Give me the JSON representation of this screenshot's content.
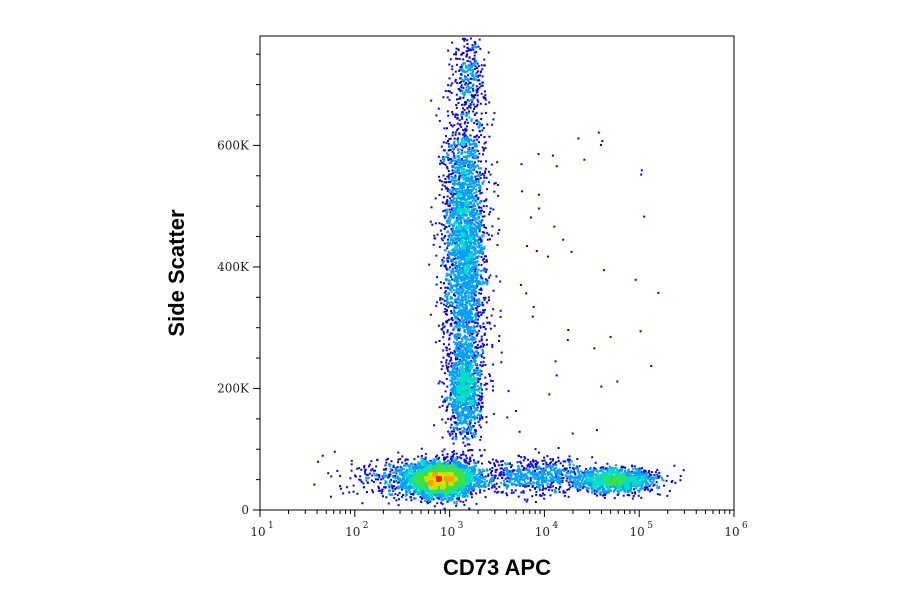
{
  "chart_data": {
    "type": "scatter",
    "subtype": "flow-cytometry-density-dot-plot",
    "xlabel": "CD73 APC",
    "ylabel": "Side Scatter",
    "x_scale": "log",
    "xlim": [
      10,
      1000000
    ],
    "x_ticks": [
      {
        "base": "10",
        "exp": "1"
      },
      {
        "base": "10",
        "exp": "2"
      },
      {
        "base": "10",
        "exp": "3"
      },
      {
        "base": "10",
        "exp": "4"
      },
      {
        "base": "10",
        "exp": "5"
      },
      {
        "base": "10",
        "exp": "6"
      }
    ],
    "y_scale": "linear",
    "ylim": [
      0,
      780000
    ],
    "y_ticks": [
      {
        "value": 0,
        "label": "0"
      },
      {
        "value": 200000,
        "label": "200K"
      },
      {
        "value": 400000,
        "label": "400K"
      },
      {
        "value": 600000,
        "label": "600K"
      }
    ],
    "color_scale": [
      "#0000ff",
      "#00a0ff",
      "#00e0c0",
      "#40e040",
      "#d0e000",
      "#ffa000",
      "#ff2000"
    ],
    "populations": [
      {
        "x_center": 800,
        "y_center": 52000,
        "relative_density": 1.0
      },
      {
        "x_center": 1500,
        "y_center": 200000,
        "relative_density": 0.45
      },
      {
        "x_center": 1500,
        "y_center": 470000,
        "relative_density": 0.4
      },
      {
        "x_center": 60000,
        "y_center": 50000,
        "relative_density": 0.35
      }
    ],
    "grid": false,
    "legend": "none"
  }
}
